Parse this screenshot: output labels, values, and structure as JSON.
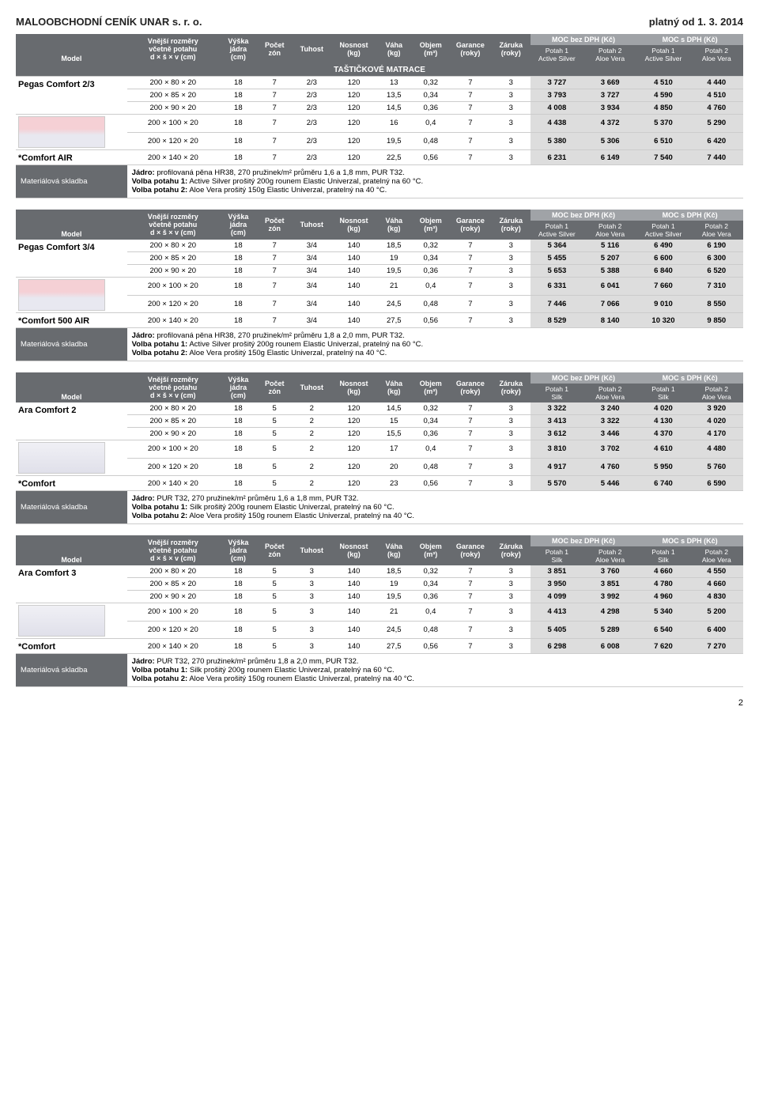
{
  "header": {
    "title": "MALOOBCHODNÍ CENÍK UNAR s. r. o.",
    "valid": "platný od 1. 3. 2014"
  },
  "cols": {
    "model": "Model",
    "dims": "Vnější rozměry\nvčetně potahu\nd × š × v (cm)",
    "core": "Výška\njádra\n(cm)",
    "zones": "Počet\nzón",
    "firm": "Tuhost",
    "load": "Nosnost\n(kg)",
    "wt": "Váha\n(kg)",
    "vol": "Objem\n(m³)",
    "gar": "Garance\n(roky)",
    "war": "Záruka\n(roky)",
    "g1": "MOC bez DPH (Kč)",
    "g2": "MOC s DPH (Kč)",
    "p1a": "Potah 1\nActive Silver",
    "p2a": "Potah 2\nAloe Vera",
    "p1s": "Potah 1\nSilk",
    "p2s": "Potah 2\nAloe Vera",
    "sect": "TAŠTIČKOVÉ MATRACE",
    "matl": "Materiálová skladba"
  },
  "t1": {
    "m1": "Pegas Comfort 2/3",
    "m2": "*Comfort AIR",
    "r": [
      [
        "200 × 80 × 20",
        "18",
        "7",
        "2/3",
        "120",
        "13",
        "0,32",
        "7",
        "3",
        "3 727",
        "3 669",
        "4 510",
        "4 440"
      ],
      [
        "200 × 85 × 20",
        "18",
        "7",
        "2/3",
        "120",
        "13,5",
        "0,34",
        "7",
        "3",
        "3 793",
        "3 727",
        "4 590",
        "4 510"
      ],
      [
        "200 × 90 × 20",
        "18",
        "7",
        "2/3",
        "120",
        "14,5",
        "0,36",
        "7",
        "3",
        "4 008",
        "3 934",
        "4 850",
        "4 760"
      ],
      [
        "200 × 100 × 20",
        "18",
        "7",
        "2/3",
        "120",
        "16",
        "0,4",
        "7",
        "3",
        "4 438",
        "4 372",
        "5 370",
        "5 290"
      ],
      [
        "200 × 120 × 20",
        "18",
        "7",
        "2/3",
        "120",
        "19,5",
        "0,48",
        "7",
        "3",
        "5 380",
        "5 306",
        "6 510",
        "6 420"
      ],
      [
        "200 × 140 × 20",
        "18",
        "7",
        "2/3",
        "120",
        "22,5",
        "0,56",
        "7",
        "3",
        "6 231",
        "6 149",
        "7 540",
        "7 440"
      ]
    ],
    "mat": [
      "Jádro: profilovaná pěna HR38, 270 pružinek/m² průměru 1,6 a 1,8 mm, PUR T32.",
      "Volba potahu 1: Active Silver prošitý 200g rounem Elastic Univerzal, pratelný na 60 °C.",
      "Volba potahu 2: Aloe Vera prošitý 150g Elastic Univerzal, pratelný na 40 °C."
    ]
  },
  "t2": {
    "m1": "Pegas Comfort 3/4",
    "m2": "*Comfort 500 AIR",
    "r": [
      [
        "200 × 80 × 20",
        "18",
        "7",
        "3/4",
        "140",
        "18,5",
        "0,32",
        "7",
        "3",
        "5 364",
        "5 116",
        "6 490",
        "6 190"
      ],
      [
        "200 × 85 × 20",
        "18",
        "7",
        "3/4",
        "140",
        "19",
        "0,34",
        "7",
        "3",
        "5 455",
        "5 207",
        "6 600",
        "6 300"
      ],
      [
        "200 × 90 × 20",
        "18",
        "7",
        "3/4",
        "140",
        "19,5",
        "0,36",
        "7",
        "3",
        "5 653",
        "5 388",
        "6 840",
        "6 520"
      ],
      [
        "200 × 100 × 20",
        "18",
        "7",
        "3/4",
        "140",
        "21",
        "0,4",
        "7",
        "3",
        "6 331",
        "6 041",
        "7 660",
        "7 310"
      ],
      [
        "200 × 120 × 20",
        "18",
        "7",
        "3/4",
        "140",
        "24,5",
        "0,48",
        "7",
        "3",
        "7 446",
        "7 066",
        "9 010",
        "8 550"
      ],
      [
        "200 × 140 × 20",
        "18",
        "7",
        "3/4",
        "140",
        "27,5",
        "0,56",
        "7",
        "3",
        "8 529",
        "8 140",
        "10 320",
        "9 850"
      ]
    ],
    "mat": [
      "Jádro: profilovaná pěna HR38, 270 pružinek/m² průměru 1,8 a 2,0 mm, PUR T32.",
      "Volba potahu 1: Active Silver prošitý 200g rounem Elastic Univerzal, pratelný na 60 °C.",
      "Volba potahu 2: Aloe Vera prošitý 150g Elastic Univerzal, pratelný na 40 °C."
    ]
  },
  "t3": {
    "m1": "Ara Comfort 2",
    "m2": "*Comfort",
    "r": [
      [
        "200 × 80 × 20",
        "18",
        "5",
        "2",
        "120",
        "14,5",
        "0,32",
        "7",
        "3",
        "3 322",
        "3 240",
        "4 020",
        "3 920"
      ],
      [
        "200 × 85 × 20",
        "18",
        "5",
        "2",
        "120",
        "15",
        "0,34",
        "7",
        "3",
        "3 413",
        "3 322",
        "4 130",
        "4 020"
      ],
      [
        "200 × 90 × 20",
        "18",
        "5",
        "2",
        "120",
        "15,5",
        "0,36",
        "7",
        "3",
        "3 612",
        "3 446",
        "4 370",
        "4 170"
      ],
      [
        "200 × 100 × 20",
        "18",
        "5",
        "2",
        "120",
        "17",
        "0,4",
        "7",
        "3",
        "3 810",
        "3 702",
        "4 610",
        "4 480"
      ],
      [
        "200 × 120 × 20",
        "18",
        "5",
        "2",
        "120",
        "20",
        "0,48",
        "7",
        "3",
        "4 917",
        "4 760",
        "5 950",
        "5 760"
      ],
      [
        "200 × 140 × 20",
        "18",
        "5",
        "2",
        "120",
        "23",
        "0,56",
        "7",
        "3",
        "5 570",
        "5 446",
        "6 740",
        "6 590"
      ]
    ],
    "mat": [
      "Jádro: PUR T32, 270 pružinek/m² průměru 1,6 a 1,8 mm, PUR T32.",
      "Volba potahu 1: Silk prošitý 200g rounem Elastic Univerzal, pratelný na 60 °C.",
      "Volba potahu 2: Aloe Vera prošitý 150g rounem Elastic Univerzal, pratelný na 40 °C."
    ]
  },
  "t4": {
    "m1": "Ara Comfort 3",
    "m2": "*Comfort",
    "r": [
      [
        "200 × 80 × 20",
        "18",
        "5",
        "3",
        "140",
        "18,5",
        "0,32",
        "7",
        "3",
        "3 851",
        "3 760",
        "4 660",
        "4 550"
      ],
      [
        "200 × 85 × 20",
        "18",
        "5",
        "3",
        "140",
        "19",
        "0,34",
        "7",
        "3",
        "3 950",
        "3 851",
        "4 780",
        "4 660"
      ],
      [
        "200 × 90 × 20",
        "18",
        "5",
        "3",
        "140",
        "19,5",
        "0,36",
        "7",
        "3",
        "4 099",
        "3 992",
        "4 960",
        "4 830"
      ],
      [
        "200 × 100 × 20",
        "18",
        "5",
        "3",
        "140",
        "21",
        "0,4",
        "7",
        "3",
        "4 413",
        "4 298",
        "5 340",
        "5 200"
      ],
      [
        "200 × 120 × 20",
        "18",
        "5",
        "3",
        "140",
        "24,5",
        "0,48",
        "7",
        "3",
        "5 405",
        "5 289",
        "6 540",
        "6 400"
      ],
      [
        "200 × 140 × 20",
        "18",
        "5",
        "3",
        "140",
        "27,5",
        "0,56",
        "7",
        "3",
        "6 298",
        "6 008",
        "7 620",
        "7 270"
      ]
    ],
    "mat": [
      "Jádro: PUR T32, 270 pružinek/m² průměru 1,8 a 2,0 mm, PUR T32.",
      "Volba potahu 1: Silk prošitý 200g rounem Elastic Univerzal, pratelný na 60 °C.",
      "Volba potahu 2: Aloe Vera prošitý 150g rounem Elastic Univerzal, pratelný na 40 °C."
    ]
  },
  "page": "2"
}
